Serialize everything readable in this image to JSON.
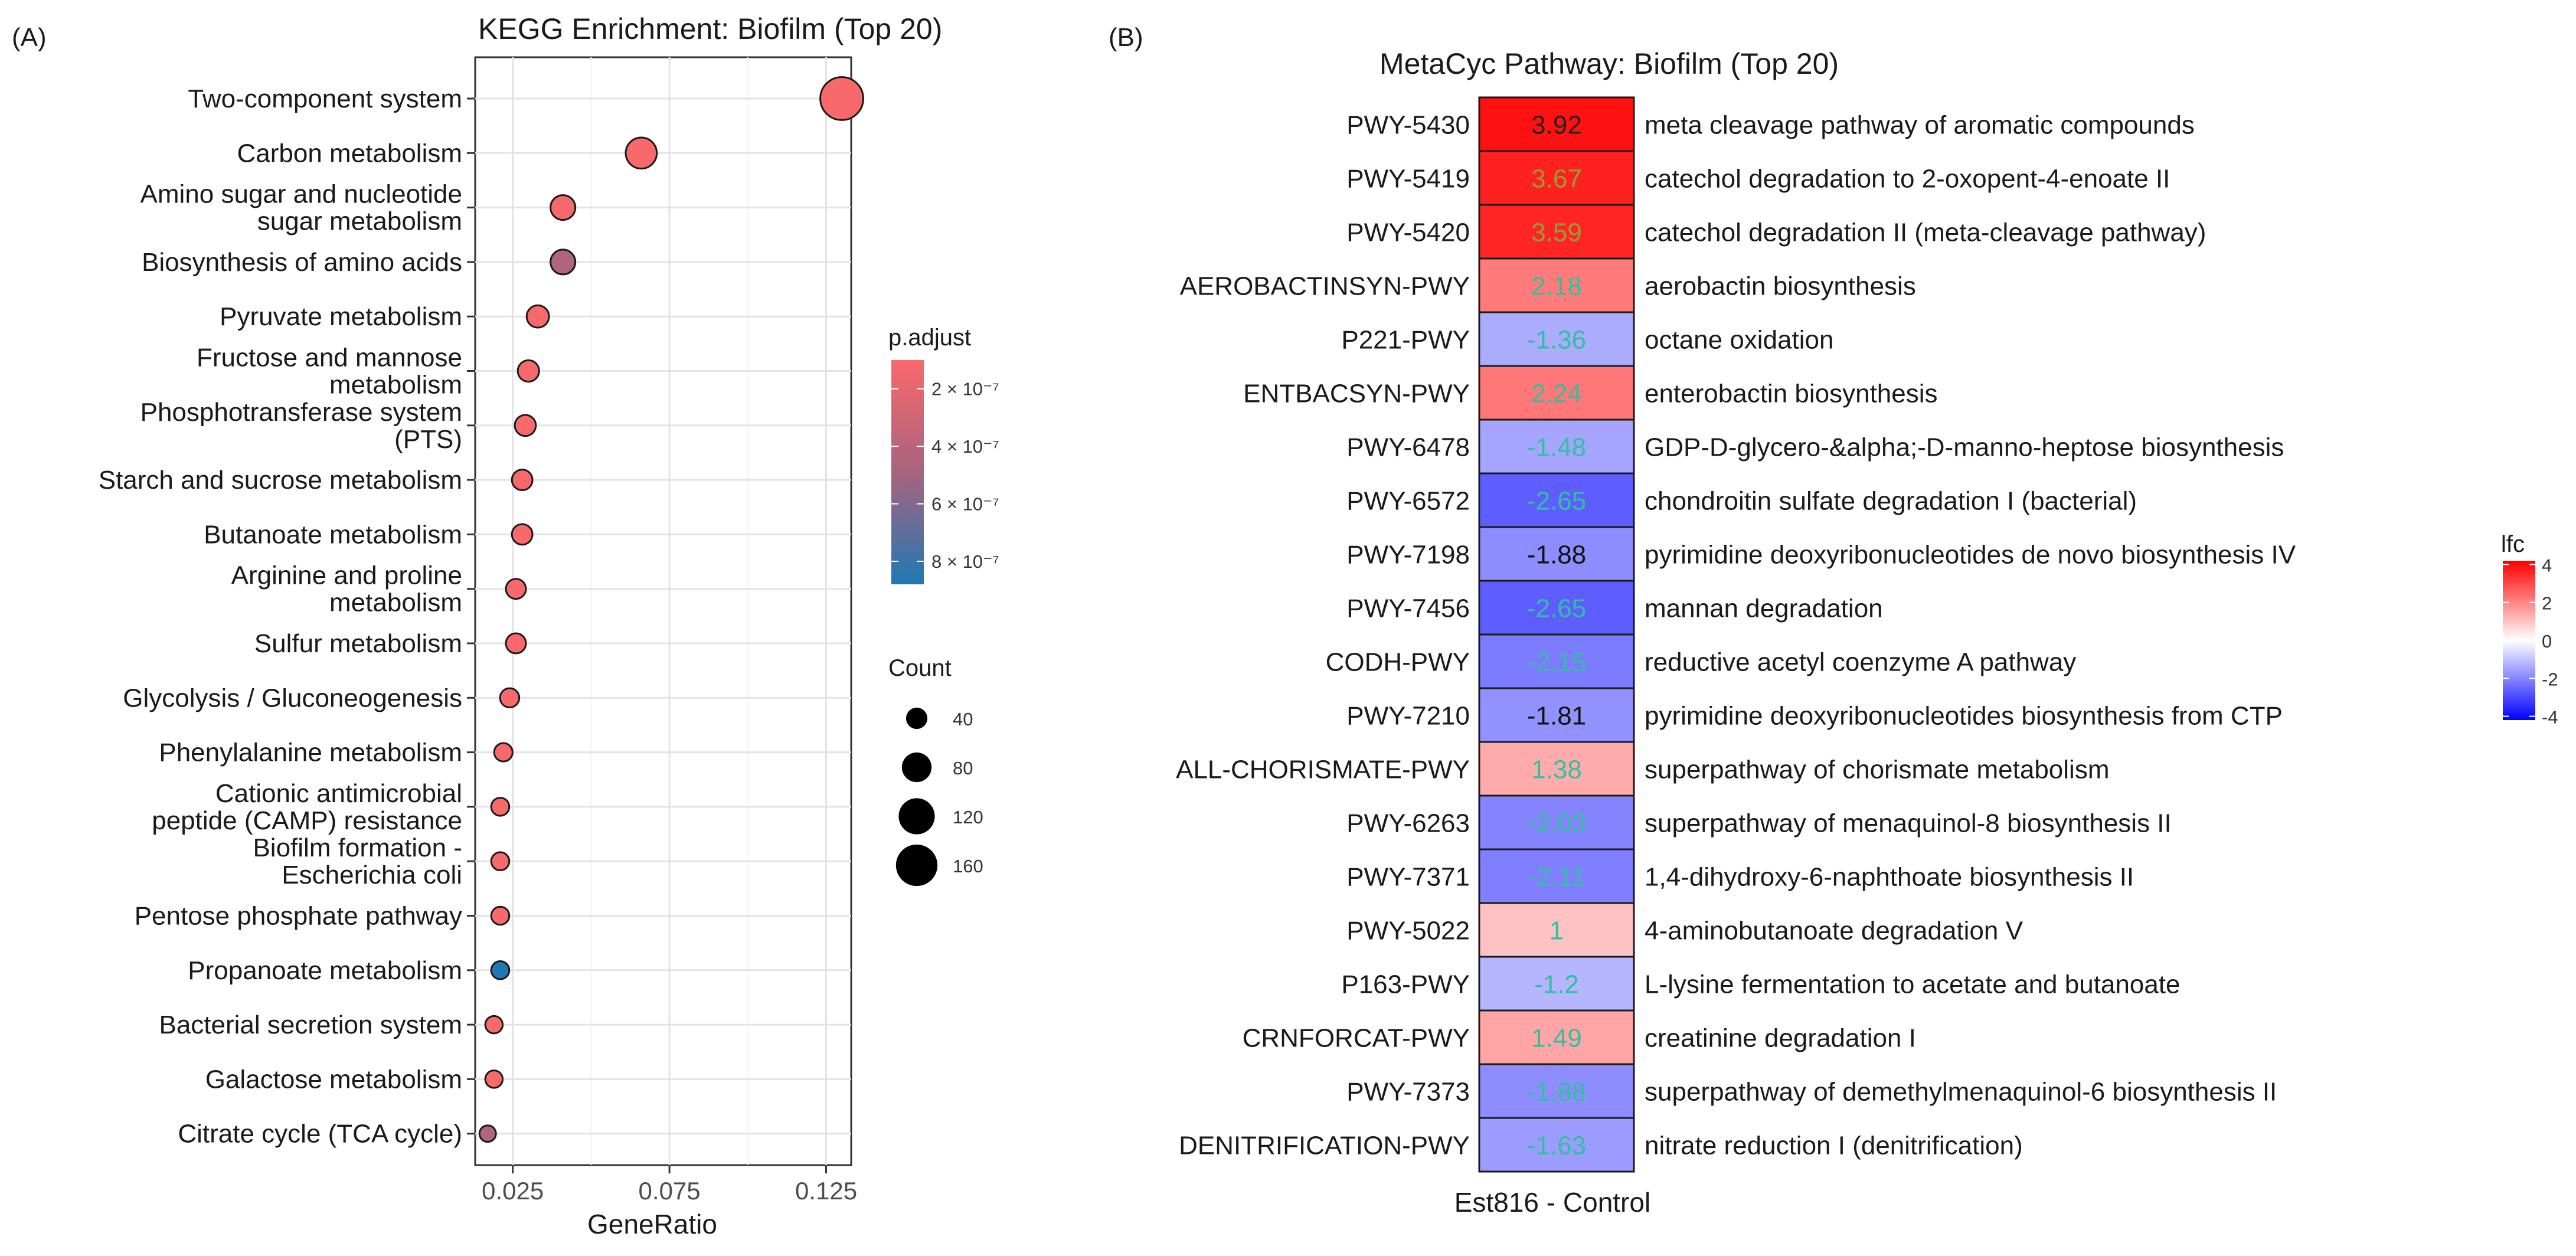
{
  "panel_labels": {
    "a": "(A)",
    "b": "(B)"
  },
  "chart_data": [
    {
      "type": "scatter",
      "subtype": "dotplot",
      "title": "KEGG Enrichment: Biofilm (Top 20)",
      "xlabel": "GeneRatio",
      "ylabel": "",
      "xlim": [
        0.013,
        0.133
      ],
      "xticks": [
        0.025,
        0.075,
        0.125
      ],
      "xtick_labels": [
        "0.025",
        "0.075",
        "0.125"
      ],
      "grid": true,
      "categories": [
        [
          "Two-component system"
        ],
        [
          "Carbon metabolism"
        ],
        [
          "Amino sugar and nucleotide",
          "sugar metabolism"
        ],
        [
          "Biosynthesis of amino acids"
        ],
        [
          "Pyruvate metabolism"
        ],
        [
          "Fructose and mannose",
          "metabolism"
        ],
        [
          "Phosphotransferase system",
          "(PTS)"
        ],
        [
          "Starch and sucrose metabolism"
        ],
        [
          "Butanoate metabolism"
        ],
        [
          "Arginine and proline",
          "metabolism"
        ],
        [
          "Sulfur metabolism"
        ],
        [
          "Glycolysis / Gluconeogenesis"
        ],
        [
          "Phenylalanine metabolism"
        ],
        [
          "Cationic antimicrobial",
          "peptide (CAMP) resistance"
        ],
        [
          "Biofilm formation -",
          "Escherichia coli"
        ],
        [
          "Pentose phosphate pathway"
        ],
        [
          "Propanoate metabolism"
        ],
        [
          "Bacterial secretion system"
        ],
        [
          "Galactose metabolism"
        ],
        [
          "Citrate cycle (TCA cycle)"
        ]
      ],
      "gene_ratio": [
        0.13,
        0.066,
        0.041,
        0.041,
        0.033,
        0.03,
        0.029,
        0.028,
        0.028,
        0.026,
        0.026,
        0.024,
        0.022,
        0.021,
        0.021,
        0.021,
        0.021,
        0.019,
        0.019,
        0.017
      ],
      "count": [
        172,
        88,
        55,
        55,
        44,
        40,
        39,
        37,
        37,
        35,
        35,
        32,
        29,
        28,
        28,
        28,
        28,
        26,
        26,
        23
      ],
      "p_adjust": [
        1e-07,
        1e-07,
        1.1e-07,
        4.5e-07,
        1e-07,
        1e-07,
        1e-07,
        1e-07,
        1e-07,
        1e-07,
        1e-07,
        1e-07,
        1e-07,
        1e-07,
        1e-07,
        1e-07,
        8.8e-07,
        1e-07,
        1e-07,
        4.5e-07
      ],
      "color_legend": {
        "title": "p.adjust",
        "range": [
          1e-07,
          8.8e-07
        ],
        "ticks": [
          2e-07,
          4e-07,
          6e-07,
          8e-07
        ],
        "tick_labels": [
          "2 × 10⁻⁷",
          "4 × 10⁻⁷",
          "6 × 10⁻⁷",
          "8 × 10⁻⁷"
        ],
        "low_color": "#f8696b",
        "high_color": "#1f78b4"
      },
      "size_legend": {
        "title": "Count",
        "values": [
          40,
          80,
          120,
          160
        ],
        "labels": [
          "40",
          "80",
          "120",
          "160"
        ]
      }
    },
    {
      "type": "heatmap",
      "title": "MetaCyc Pathway: Biofilm (Top 20)",
      "xlabel": "Est816 - Control",
      "columns": [
        "Est816 - Control"
      ],
      "rows": [
        {
          "id": "PWY-5430",
          "description": "meta cleavage pathway of aromatic compounds",
          "lfc": 3.92
        },
        {
          "id": "PWY-5419",
          "description": "catechol degradation to 2-oxopent-4-enoate II",
          "lfc": 3.67
        },
        {
          "id": "PWY-5420",
          "description": "catechol degradation II (meta-cleavage pathway)",
          "lfc": 3.59
        },
        {
          "id": "AEROBACTINSYN-PWY",
          "description": "aerobactin biosynthesis",
          "lfc": 2.18
        },
        {
          "id": "P221-PWY",
          "description": "octane oxidation",
          "lfc": -1.36
        },
        {
          "id": "ENTBACSYN-PWY",
          "description": "enterobactin biosynthesis",
          "lfc": 2.24
        },
        {
          "id": "PWY-6478",
          "description": "GDP-D-glycero-&alpha;-D-manno-heptose biosynthesis",
          "lfc": -1.48
        },
        {
          "id": "PWY-6572",
          "description": "chondroitin sulfate degradation I (bacterial)",
          "lfc": -2.65
        },
        {
          "id": "PWY-7198",
          "description": "pyrimidine deoxyribonucleotides de novo biosynthesis IV",
          "lfc": -1.88
        },
        {
          "id": "PWY-7456",
          "description": "mannan degradation",
          "lfc": -2.65
        },
        {
          "id": "CODH-PWY",
          "description": "reductive acetyl coenzyme A pathway",
          "lfc": -2.15
        },
        {
          "id": "PWY-7210",
          "description": "pyrimidine deoxyribonucleotides biosynthesis from CTP",
          "lfc": -1.81
        },
        {
          "id": "ALL-CHORISMATE-PWY",
          "description": "superpathway of chorismate metabolism",
          "lfc": 1.38
        },
        {
          "id": "PWY-6263",
          "description": "superpathway of menaquinol-8 biosynthesis II",
          "lfc": -2.03
        },
        {
          "id": "PWY-7371",
          "description": "1,4-dihydroxy-6-naphthoate biosynthesis II",
          "lfc": -2.11
        },
        {
          "id": "PWY-5022",
          "description": "4-aminobutanoate degradation V",
          "lfc": 1
        },
        {
          "id": "P163-PWY",
          "description": "L-lysine fermentation to acetate and butanoate",
          "lfc": -1.2
        },
        {
          "id": "CRNFORCAT-PWY",
          "description": "creatinine degradation I",
          "lfc": 1.49
        },
        {
          "id": "PWY-7373",
          "description": "superpathway of demethylmenaquinol-6 biosynthesis II",
          "lfc": -1.88
        },
        {
          "id": "DENITRIFICATION-PWY",
          "description": "nitrate reduction I (denitrification)",
          "lfc": -1.63
        }
      ],
      "value_text_colors": [
        "#222222",
        "#9a9a3a",
        "#9a9a3a",
        "#30c0a0",
        "#30c0a0",
        "#30c0a0",
        "#30c0a0",
        "#30c0a0",
        "#111111",
        "#30c0a0",
        "#30c0a0",
        "#111111",
        "#30c0a0",
        "#30c0a0",
        "#30c0a0",
        "#30c0a0",
        "#30c0a0",
        "#30c0a0",
        "#30c0a0",
        "#30c0a0"
      ],
      "color_legend": {
        "title": "lfc",
        "range": [
          -4.2,
          4.2
        ],
        "ticks": [
          4,
          2,
          0,
          -2,
          -4
        ],
        "tick_labels": [
          "4",
          "2",
          "0",
          "-2",
          "-4"
        ],
        "low_color": "#0000ff",
        "mid_color": "#ffffff",
        "high_color": "#ff0000"
      }
    }
  ]
}
